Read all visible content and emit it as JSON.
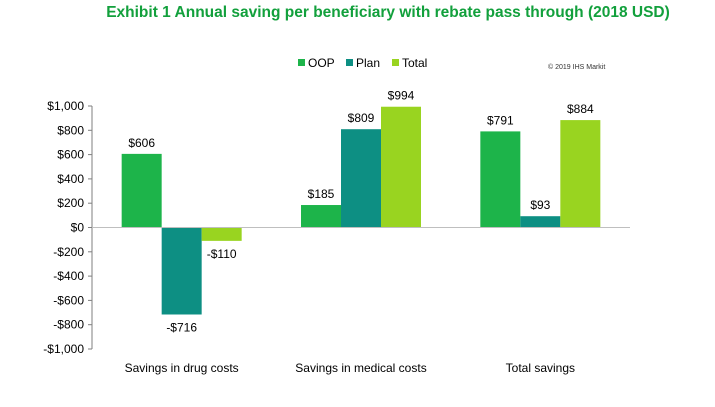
{
  "chart_data": {
    "type": "bar",
    "title": "Exhibit 1 Annual saving per beneficiary with rebate pass through (2018 USD)",
    "copyright": "© 2019 IHS Markit",
    "categories": [
      "Savings in drug costs",
      "Savings in medical costs",
      "Total savings"
    ],
    "series": [
      {
        "name": "OOP",
        "color": "#1db44a",
        "values": [
          606,
          185,
          791
        ],
        "labels": [
          "$606",
          "$185",
          "$791"
        ]
      },
      {
        "name": "Plan",
        "color": "#0d8f83",
        "values": [
          -716,
          809,
          93
        ],
        "labels": [
          "-$716",
          "$809",
          "$93"
        ]
      },
      {
        "name": "Total",
        "color": "#99d420",
        "values": [
          -110,
          994,
          884
        ],
        "labels": [
          "-$110",
          "$994",
          "$884"
        ]
      }
    ],
    "ylim": [
      -1000,
      1000
    ],
    "yticks": [
      1000,
      800,
      600,
      400,
      200,
      0,
      -200,
      -400,
      -600,
      -800,
      -1000
    ],
    "ytick_labels": [
      "$1,000",
      "$800",
      "$600",
      "$400",
      "$200",
      "$0",
      "-$200",
      "-$400",
      "-$600",
      "-$800",
      "-$1,000"
    ],
    "title_color": "#12a03c",
    "legend_position": "top-center",
    "grid": false
  }
}
